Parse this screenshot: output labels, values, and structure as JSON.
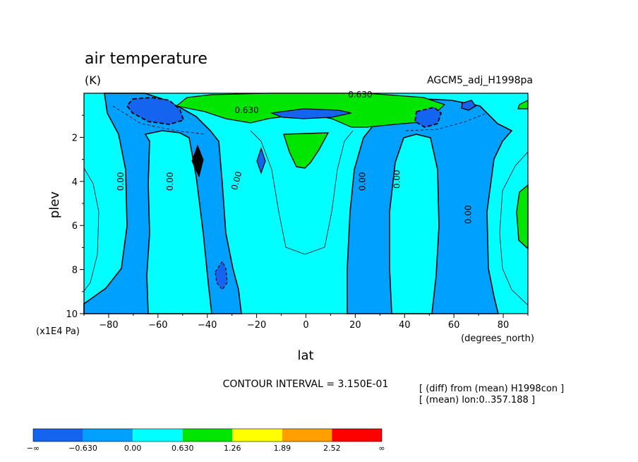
{
  "chart_data": {
    "type": "contour",
    "title": "air temperature",
    "units": "(K)",
    "dataset": "AGCM5_adj_H1998pa",
    "xlabel": "lat",
    "xunits": "(degrees_north)",
    "ylabel": "plev",
    "yunits": "(x1E4 Pa)",
    "xlim": [
      -90,
      90
    ],
    "ylim": [
      10,
      0
    ],
    "xticks": [
      -80,
      -60,
      -40,
      -20,
      0,
      20,
      40,
      60,
      80
    ],
    "xtick_labels": [
      "−80",
      "−60",
      "−40",
      "−20",
      "0",
      "20",
      "40",
      "60",
      "80"
    ],
    "yticks": [
      2,
      4,
      6,
      8,
      10
    ],
    "ytick_labels": [
      "2",
      "4",
      "6",
      "8",
      "10"
    ],
    "contour_interval_text": "CONTOUR INTERVAL = 3.150E-01",
    "contour_labels": [
      {
        "text": "0.00",
        "lat": -74,
        "plev": 4.0,
        "rot": -90
      },
      {
        "text": "0.00",
        "lat": -54,
        "plev": 4.0,
        "rot": -90
      },
      {
        "text": "0.00",
        "lat": -27,
        "plev": 4.0,
        "rot": -75
      },
      {
        "text": "0.00",
        "lat": 24,
        "plev": 4.0,
        "rot": -90
      },
      {
        "text": "0.00",
        "lat": 38,
        "plev": 3.9,
        "rot": -90
      },
      {
        "text": "0.00",
        "lat": 67,
        "plev": 5.5,
        "rot": -90
      },
      {
        "text": "0.630",
        "lat": -24,
        "plev": 0.9,
        "rot": 0
      },
      {
        "text": "0.630",
        "lat": 22,
        "plev": 0.2,
        "rot": 0
      }
    ],
    "notes": [
      "[ (diff) from (mean) H1998con ]",
      "[ (mean) lon:0..357.188 ]"
    ],
    "levels": [
      {
        "label": "−∞",
        "color": "#1464f0"
      },
      {
        "label": "−0.630",
        "color": "#00a0ff"
      },
      {
        "label": "0.00",
        "color": "#00ffff"
      },
      {
        "label": "0.630",
        "color": "#00e600"
      },
      {
        "label": "1.26",
        "color": "#ffff00"
      },
      {
        "label": "1.89",
        "color": "#ffa000"
      },
      {
        "label": "2.52",
        "color": "#ff0000"
      },
      {
        "label": "∞",
        "color": ""
      }
    ],
    "colorbar": [
      "#1464f0",
      "#00a0ff",
      "#00ffff",
      "#00e600",
      "#ffff00",
      "#ffa000",
      "#ff0000"
    ]
  },
  "colors": {
    "dark_blue": "#1464f0",
    "mid_blue": "#00a0ff",
    "cyan": "#00ffff",
    "green": "#00e600",
    "yellow": "#ffff00",
    "orange": "#ffa000",
    "red": "#ff0000"
  }
}
